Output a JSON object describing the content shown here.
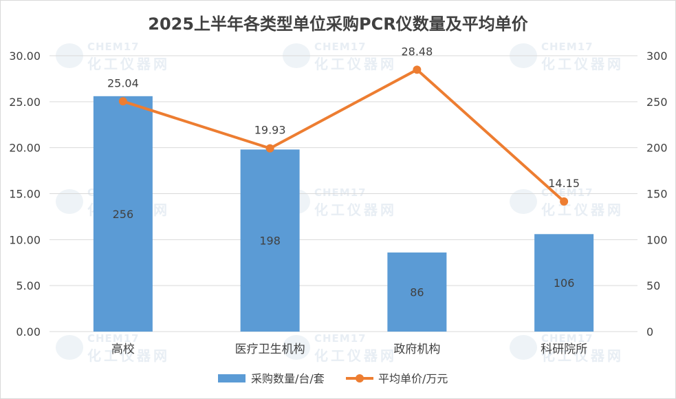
{
  "chart_data": {
    "type": "bar",
    "title": "2025上半年各类型单位采购PCR仪数量及平均单价",
    "categories": [
      "高校",
      "医疗卫生机构",
      "政府机构",
      "科研院所"
    ],
    "series": [
      {
        "name": "采购数量/台/套",
        "type": "bar",
        "axis": "right",
        "values": [
          256,
          198,
          86,
          106
        ],
        "color": "#5b9bd5"
      },
      {
        "name": "平均单价/万元",
        "type": "line",
        "axis": "left",
        "values": [
          25.04,
          19.93,
          28.48,
          14.15
        ],
        "color": "#ed7d31"
      }
    ],
    "bar_labels": [
      "256",
      "198",
      "86",
      "106"
    ],
    "line_labels": [
      "25.04",
      "19.93",
      "28.48",
      "14.15"
    ],
    "y_left": {
      "ylim": [
        0,
        30
      ],
      "ticks": [
        "0.00",
        "5.00",
        "10.00",
        "15.00",
        "20.00",
        "25.00",
        "30.00"
      ]
    },
    "y_right": {
      "ylim": [
        0,
        300
      ],
      "ticks": [
        "0",
        "50",
        "100",
        "150",
        "200",
        "250",
        "300"
      ]
    },
    "grid": true,
    "legend_position": "bottom"
  },
  "watermark": {
    "line1": "CHEM17",
    "line2": "化工仪器网"
  }
}
